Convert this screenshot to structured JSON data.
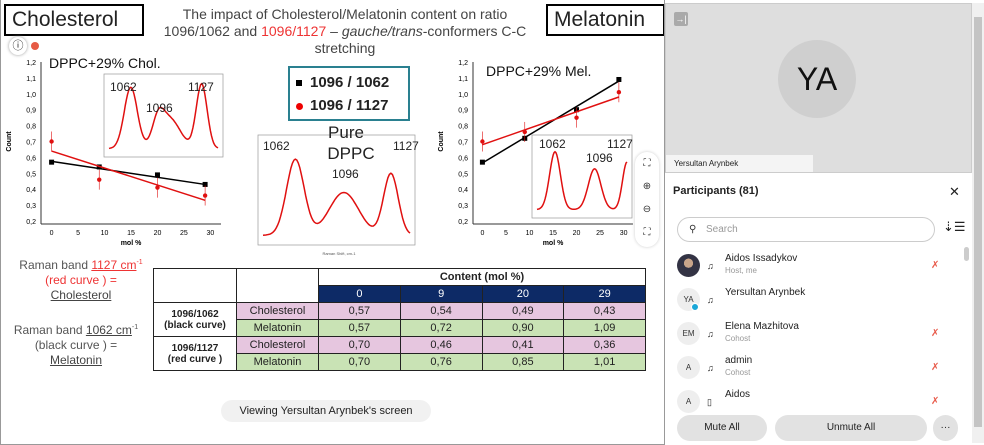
{
  "slide": {
    "left_box": "Cholesterol",
    "right_box": "Melatonin",
    "title_line1": "The impact of Cholesterol/Melatonin content  on ratio",
    "title_line2_a": "1096/1062 and ",
    "title_line2_red": "1096/1127",
    "title_line2_b": " – ",
    "title_line2_italic": "gauche/trans",
    "title_line2_c": "-conformers C-C",
    "title_line3": "stretching",
    "share_banner": "Viewing Yersultan Arynbek's screen",
    "legend": {
      "black": "1096 / 1062",
      "red": "1096 / 1127"
    },
    "pure_label_1": "Pure",
    "pure_label_2": "DPPC",
    "note1": {
      "a": "Raman band ",
      "band": "1127 cm",
      "sup": "-1",
      "b": "(red curve ) =",
      "c": "Cholesterol"
    },
    "note2": {
      "a": "Raman band ",
      "band": "1062 cm",
      "sup": "-1",
      "b": "(black curve ) =",
      "c": "Melatonin"
    },
    "spectrum": {
      "peaks": [
        "1062",
        "1096",
        "1127"
      ],
      "xlabel": "Raman Shift, cm-1"
    },
    "table": {
      "header": "Content (mol %)",
      "columns": [
        "0",
        "9",
        "20",
        "29"
      ],
      "groups": [
        {
          "label1": "1096/1062",
          "label2": "(black curve)",
          "rows": [
            {
              "name": "Cholesterol",
              "values": [
                "0,57",
                "0,54",
                "0,49",
                "0,43"
              ]
            },
            {
              "name": "Melatonin",
              "values": [
                "0,57",
                "0,72",
                "0,90",
                "1,09"
              ]
            }
          ]
        },
        {
          "label1": "1096/1127",
          "label2": "(red curve )",
          "rows": [
            {
              "name": "Cholesterol",
              "values": [
                "0,70",
                "0,46",
                "0,41",
                "0,36"
              ]
            },
            {
              "name": "Melatonin",
              "values": [
                "0,70",
                "0,76",
                "0,85",
                "1,01"
              ]
            }
          ]
        }
      ]
    }
  },
  "chart_data": [
    {
      "type": "scatter",
      "title": "DPPC+29% Chol.",
      "xlabel": "mol %",
      "ylabel": "Count",
      "xlim": [
        -2,
        32
      ],
      "ylim": [
        0.2,
        1.2
      ],
      "xticks": [
        "0",
        "5",
        "10",
        "15",
        "20",
        "25",
        "30"
      ],
      "yticks": [
        "0,2",
        "0,3",
        "0,4",
        "0,5",
        "0,6",
        "0,7",
        "0,8",
        "0,9",
        "1,0",
        "1,1",
        "1,2"
      ],
      "x": [
        0,
        9,
        20,
        29
      ],
      "series": [
        {
          "name": "1096 / 1062",
          "color": "#000000",
          "values": [
            0.57,
            0.54,
            0.49,
            0.43
          ],
          "fit": [
            0.575,
            0.43
          ]
        },
        {
          "name": "1096 / 1127",
          "color": "#e01010",
          "values": [
            0.7,
            0.46,
            0.41,
            0.36
          ],
          "fit": [
            0.64,
            0.33
          ]
        }
      ]
    },
    {
      "type": "scatter",
      "title": "DPPC+29% Mel.",
      "xlabel": "mol %",
      "ylabel": "Count",
      "xlim": [
        -2,
        32
      ],
      "ylim": [
        0.2,
        1.2
      ],
      "xticks": [
        "0",
        "5",
        "10",
        "15",
        "20",
        "25",
        "30"
      ],
      "yticks": [
        "0,2",
        "0,3",
        "0,4",
        "0,5",
        "0,6",
        "0,7",
        "0,8",
        "0,9",
        "1,0",
        "1,1",
        "1,2"
      ],
      "x": [
        0,
        9,
        20,
        29
      ],
      "series": [
        {
          "name": "1096 / 1062",
          "color": "#000000",
          "values": [
            0.57,
            0.72,
            0.9,
            1.09
          ],
          "fit": [
            0.565,
            1.08
          ]
        },
        {
          "name": "1096 / 1127",
          "color": "#e01010",
          "values": [
            0.7,
            0.76,
            0.85,
            1.01
          ],
          "fit": [
            0.68,
            0.98
          ]
        }
      ]
    }
  ],
  "video": {
    "initials": "YA",
    "name": "Yersultan Arynbek"
  },
  "participants": {
    "title": "Participants (81)",
    "search_placeholder": "Search",
    "list": [
      {
        "initials": "",
        "name": "Aidos Issadykov",
        "role": "Host, me"
      },
      {
        "initials": "YA",
        "name": "Yersultan Arynbek",
        "role": ""
      },
      {
        "initials": "EM",
        "name": "Elena Mazhitova",
        "role": "Cohost"
      },
      {
        "initials": "A",
        "name": "admin",
        "role": "Cohost"
      },
      {
        "initials": "A",
        "name": "Aidos",
        "role": ""
      }
    ],
    "mute_all": "Mute All",
    "unmute_all": "Unmute All",
    "more": "···"
  }
}
